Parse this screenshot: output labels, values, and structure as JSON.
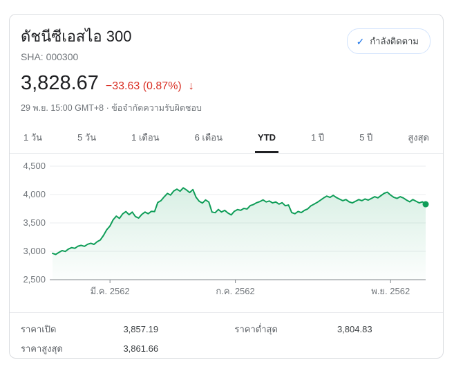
{
  "header": {
    "title": "ดัชนีซีเอสไอ 300",
    "subtitle": "SHA: 000300",
    "follow_button": {
      "label": "กำลังติดตาม",
      "check_icon": "✓"
    }
  },
  "quote": {
    "price": "3,828.67",
    "change": "−33.63 (0.87%)",
    "direction_icon": "↓",
    "change_color": "#d93025",
    "timestamp": "29 พ.ย. 15:00 GMT+8",
    "separator": " · ",
    "disclaimer": "ข้อจำกัดความรับผิดชอบ"
  },
  "tabs": [
    {
      "label": "1 วัน",
      "active": false
    },
    {
      "label": "5 วัน",
      "active": false
    },
    {
      "label": "1 เดือน",
      "active": false
    },
    {
      "label": "6 เดือน",
      "active": false
    },
    {
      "label": "YTD",
      "active": true
    },
    {
      "label": "1 ปี",
      "active": false
    },
    {
      "label": "5 ปี",
      "active": false
    },
    {
      "label": "สูงสุด",
      "active": false
    }
  ],
  "chart_data": {
    "type": "area",
    "title": "CSI 300 YTD price",
    "ylim": [
      2500,
      4500
    ],
    "yticks": [
      {
        "value": 2500,
        "label": "2,500"
      },
      {
        "value": 3000,
        "label": "3,000"
      },
      {
        "value": 3500,
        "label": "3,500"
      },
      {
        "value": 4000,
        "label": "4,000"
      },
      {
        "value": 4500,
        "label": "4,500"
      }
    ],
    "xticks": [
      {
        "pos": 0.154,
        "label": "มี.ค. 2562"
      },
      {
        "pos": 0.49,
        "label": "ก.ค. 2562"
      },
      {
        "pos": 0.906,
        "label": "พ.ย. 2562"
      }
    ],
    "values": [
      2965,
      2945,
      2980,
      3012,
      2998,
      3040,
      3065,
      3052,
      3090,
      3105,
      3088,
      3125,
      3142,
      3122,
      3170,
      3200,
      3280,
      3380,
      3445,
      3555,
      3620,
      3580,
      3660,
      3700,
      3645,
      3692,
      3612,
      3585,
      3650,
      3692,
      3662,
      3705,
      3700,
      3860,
      3892,
      3958,
      4020,
      3992,
      4062,
      4095,
      4058,
      4118,
      4082,
      4035,
      4088,
      3952,
      3882,
      3850,
      3905,
      3868,
      3692,
      3680,
      3736,
      3692,
      3722,
      3675,
      3642,
      3705,
      3735,
      3722,
      3756,
      3745,
      3806,
      3825,
      3856,
      3876,
      3906,
      3870,
      3886,
      3852,
      3870,
      3832,
      3856,
      3802,
      3816,
      3682,
      3662,
      3702,
      3682,
      3722,
      3746,
      3800,
      3830,
      3862,
      3900,
      3940,
      3972,
      3950,
      3985,
      3948,
      3920,
      3892,
      3912,
      3872,
      3852,
      3882,
      3912,
      3892,
      3922,
      3902,
      3932,
      3962,
      3942,
      3982,
      4022,
      4042,
      3992,
      3952,
      3932,
      3962,
      3940,
      3902,
      3872,
      3912,
      3882,
      3852,
      3872,
      3829
    ],
    "end_value": 3828.67,
    "line_color": "#0f9d58",
    "dot_color": "#0f9d58",
    "fill_top_color": "rgba(15,157,88,0.16)",
    "fill_bottom_color": "rgba(15,157,88,0.01)",
    "grid_color": "#ebedef",
    "axis_color": "#80868b",
    "tick_label_color": "#70757a",
    "grid": true,
    "legend": false
  },
  "stats": {
    "columns": [
      {
        "rows": [
          {
            "label": "ราคาเปิด",
            "value": "3,857.19"
          },
          {
            "label": "ราคาสูงสุด",
            "value": "3,861.66"
          }
        ]
      },
      {
        "rows": [
          {
            "label": "ราคาต่ำสุด",
            "value": "3,804.83"
          }
        ]
      }
    ]
  }
}
